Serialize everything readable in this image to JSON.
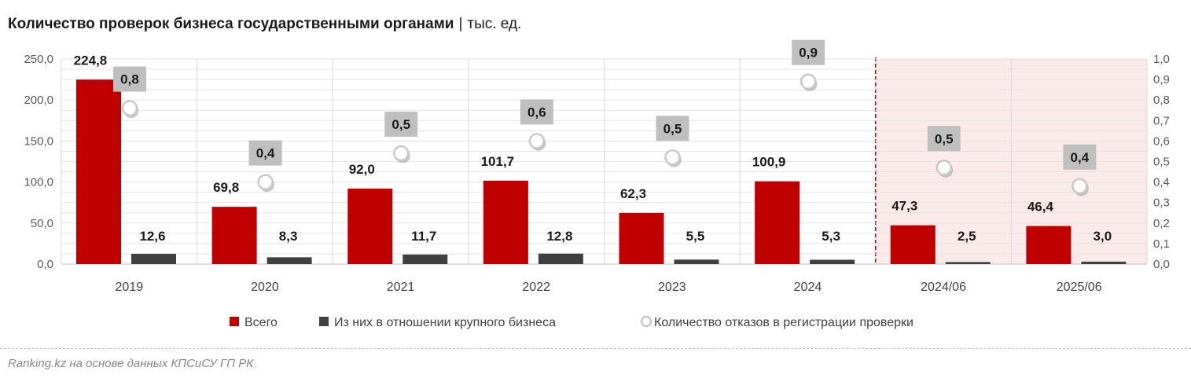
{
  "title": {
    "main": "Количество проверок бизнеса государственными органами",
    "separator": "|",
    "unit": "тыс. ед."
  },
  "source": "Ranking.kz на основе данных КПСиСУ ГП РК",
  "colors": {
    "total": "#C00000",
    "large_business": "#404040",
    "refusals_marker": "#ffffff",
    "label_box": "#BFBFBF",
    "forecast_band": "#FBEAEA",
    "forecast_line": "#C00000"
  },
  "chart_data": {
    "type": "bar",
    "categories": [
      "2019",
      "2020",
      "2021",
      "2022",
      "2023",
      "2024",
      "2024/06",
      "2025/06"
    ],
    "series": [
      {
        "name": "Всего",
        "type": "bar",
        "axis": "left",
        "values": [
          224.8,
          69.8,
          92.0,
          101.7,
          62.3,
          100.9,
          47.3,
          46.4
        ],
        "labels": [
          "224,8",
          "69,8",
          "92,0",
          "101,7",
          "62,3",
          "100,9",
          "47,3",
          "46,4"
        ]
      },
      {
        "name": "Из них в отношении крупного бизнеса",
        "type": "bar",
        "axis": "left",
        "values": [
          12.6,
          8.3,
          11.7,
          12.8,
          5.5,
          5.3,
          2.5,
          3.0
        ],
        "labels": [
          "12,6",
          "8,3",
          "11,7",
          "12,8",
          "5,5",
          "5,3",
          "2,5",
          "3,0"
        ]
      },
      {
        "name": "Количество отказов в регистрации проверки",
        "type": "scatter",
        "axis": "right",
        "values": [
          0.76,
          0.4,
          0.54,
          0.6,
          0.52,
          0.89,
          0.47,
          0.38
        ],
        "labels": [
          "0,8",
          "0,4",
          "0,5",
          "0,6",
          "0,5",
          "0,9",
          "0,5",
          "0,4"
        ]
      }
    ],
    "ylim_left": [
      0,
      250
    ],
    "yticks_left": [
      "0,0",
      "50,0",
      "100,0",
      "150,0",
      "200,0",
      "250,0"
    ],
    "ylim_right": [
      0,
      1
    ],
    "yticks_right": [
      "0,0",
      "0,1",
      "0,2",
      "0,3",
      "0,4",
      "0,5",
      "0,6",
      "0,7",
      "0,8",
      "0,9",
      "1,0"
    ],
    "highlighted_categories": [
      "2024/06",
      "2025/06"
    ],
    "grid": true,
    "legend_position": "bottom"
  }
}
